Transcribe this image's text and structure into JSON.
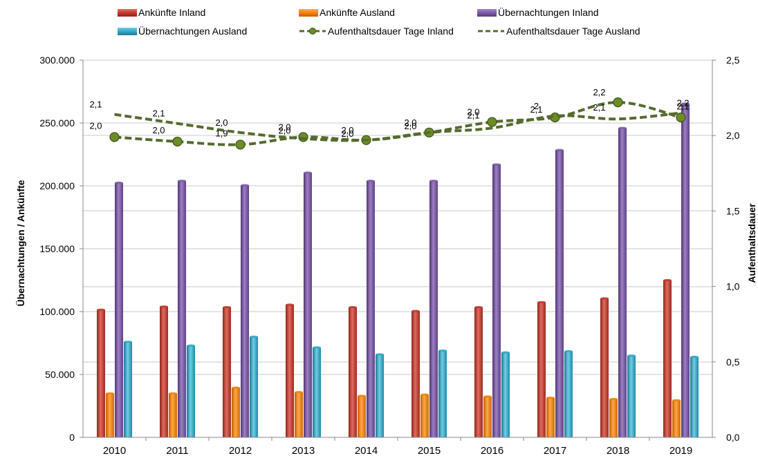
{
  "chart_data": {
    "type": "bar",
    "categories": [
      "2010",
      "2011",
      "2012",
      "2013",
      "2014",
      "2015",
      "2016",
      "2017",
      "2018",
      "2019"
    ],
    "ylabel_left": "Übernachtungen / Ankünfte",
    "ylabel_right": "Aufenthaltsdauer",
    "ylim_left": [
      0,
      300000
    ],
    "ylim_right": [
      0,
      2.5
    ],
    "left_ticks": [
      "0",
      "50.000",
      "100.000",
      "150.000",
      "200.000",
      "250.000",
      "300.000"
    ],
    "right_ticks": [
      "0,0",
      "0,5",
      "1,0",
      "1,5",
      "2,0",
      "2,5"
    ],
    "grid": true,
    "legend_position": "top",
    "bar_series": [
      {
        "name": "Ankünfte Inland",
        "color": "#c0392b",
        "values": [
          101500,
          104000,
          103500,
          105500,
          103500,
          100500,
          103500,
          107500,
          110500,
          125000
        ]
      },
      {
        "name": "Ankünfte Ausland",
        "color": "#f5820d",
        "values": [
          35000,
          35000,
          39500,
          36000,
          33000,
          34000,
          32500,
          31500,
          30500,
          29500
        ]
      },
      {
        "name": "Übernachtungen Inland",
        "color": "#7b5ba6",
        "values": [
          202500,
          204000,
          200500,
          210500,
          204000,
          204000,
          217000,
          228500,
          246000,
          265500
        ]
      },
      {
        "name": "Übernachtungen Ausland",
        "color": "#30a7c6",
        "values": [
          76000,
          73000,
          80000,
          71500,
          66000,
          69000,
          67500,
          68500,
          65000,
          64000
        ]
      }
    ],
    "line_series": [
      {
        "name": "Aufenthaltsdauer Tage Inland",
        "color": "#556b2f",
        "markers": true,
        "values": [
          1.99,
          1.96,
          1.94,
          1.99,
          1.97,
          2.02,
          2.09,
          2.12,
          2.22,
          2.12
        ],
        "labels": [
          "2,0",
          "2,0",
          "1,9",
          "2,0",
          "2,0",
          "2,0",
          "2,1",
          "2,1",
          "2,2",
          "2,1"
        ]
      },
      {
        "name": "Aufenthaltsdauer Tage Ausland",
        "color": "#556b2f",
        "markers": false,
        "values": [
          2.14,
          2.08,
          2.02,
          1.98,
          1.97,
          2.02,
          2.05,
          2.13,
          2.11,
          2.15
        ],
        "labels": [
          "2,1",
          "2,1",
          "2,0",
          "2,0",
          "2,0",
          "2,0",
          "2,0",
          "2",
          "2,1",
          "2,2"
        ]
      }
    ]
  }
}
